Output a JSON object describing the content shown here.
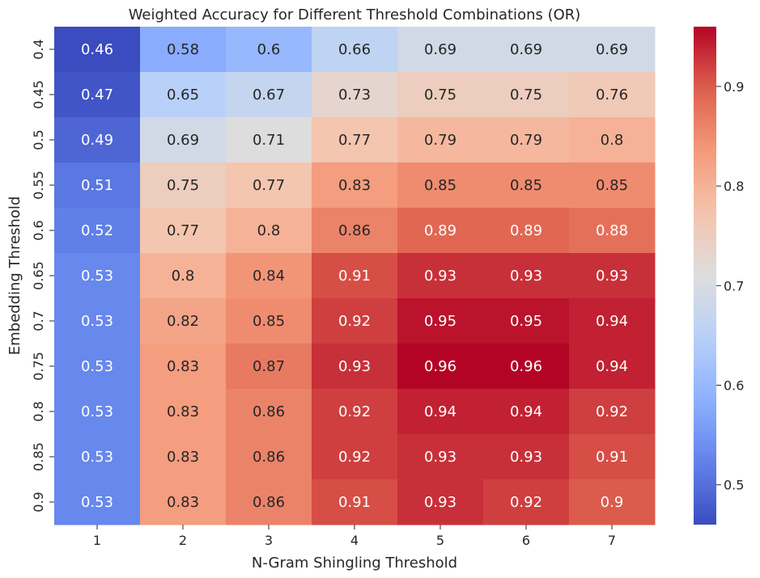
{
  "chart_data": {
    "type": "heatmap",
    "title": "Weighted Accuracy for Different Threshold Combinations (OR)",
    "xlabel": "N-Gram Shingling Threshold",
    "ylabel": "Embedding Threshold",
    "x": [
      "1",
      "2",
      "3",
      "4",
      "5",
      "6",
      "7"
    ],
    "y": [
      "0.4",
      "0.45",
      "0.5",
      "0.55",
      "0.6",
      "0.65",
      "0.7",
      "0.75",
      "0.8",
      "0.85",
      "0.9"
    ],
    "values": [
      [
        0.46,
        0.58,
        0.6,
        0.66,
        0.69,
        0.69,
        0.69
      ],
      [
        0.47,
        0.65,
        0.67,
        0.73,
        0.75,
        0.75,
        0.76
      ],
      [
        0.49,
        0.69,
        0.71,
        0.77,
        0.79,
        0.79,
        0.8
      ],
      [
        0.51,
        0.75,
        0.77,
        0.83,
        0.85,
        0.85,
        0.85
      ],
      [
        0.52,
        0.77,
        0.8,
        0.86,
        0.89,
        0.89,
        0.88
      ],
      [
        0.53,
        0.8,
        0.84,
        0.91,
        0.93,
        0.93,
        0.93
      ],
      [
        0.53,
        0.82,
        0.85,
        0.92,
        0.95,
        0.95,
        0.94
      ],
      [
        0.53,
        0.83,
        0.87,
        0.93,
        0.96,
        0.96,
        0.94
      ],
      [
        0.53,
        0.83,
        0.86,
        0.92,
        0.94,
        0.94,
        0.92
      ],
      [
        0.53,
        0.83,
        0.86,
        0.92,
        0.93,
        0.93,
        0.91
      ],
      [
        0.53,
        0.83,
        0.86,
        0.91,
        0.93,
        0.92,
        0.9
      ]
    ],
    "cell_labels": [
      [
        "0.46",
        "0.58",
        "0.6",
        "0.66",
        "0.69",
        "0.69",
        "0.69"
      ],
      [
        "0.47",
        "0.65",
        "0.67",
        "0.73",
        "0.75",
        "0.75",
        "0.76"
      ],
      [
        "0.49",
        "0.69",
        "0.71",
        "0.77",
        "0.79",
        "0.79",
        "0.8"
      ],
      [
        "0.51",
        "0.75",
        "0.77",
        "0.83",
        "0.85",
        "0.85",
        "0.85"
      ],
      [
        "0.52",
        "0.77",
        "0.8",
        "0.86",
        "0.89",
        "0.89",
        "0.88"
      ],
      [
        "0.53",
        "0.8",
        "0.84",
        "0.91",
        "0.93",
        "0.93",
        "0.93"
      ],
      [
        "0.53",
        "0.82",
        "0.85",
        "0.92",
        "0.95",
        "0.95",
        "0.94"
      ],
      [
        "0.53",
        "0.83",
        "0.87",
        "0.93",
        "0.96",
        "0.96",
        "0.94"
      ],
      [
        "0.53",
        "0.83",
        "0.86",
        "0.92",
        "0.94",
        "0.94",
        "0.92"
      ],
      [
        "0.53",
        "0.83",
        "0.86",
        "0.92",
        "0.93",
        "0.93",
        "0.91"
      ],
      [
        "0.53",
        "0.83",
        "0.86",
        "0.91",
        "0.93",
        "0.92",
        "0.9"
      ]
    ],
    "colorbar": {
      "min": 0.46,
      "max": 0.96,
      "ticks": [
        "0.5",
        "0.6",
        "0.7",
        "0.8",
        "0.9"
      ],
      "colormap": "coolwarm"
    },
    "grid": false
  }
}
